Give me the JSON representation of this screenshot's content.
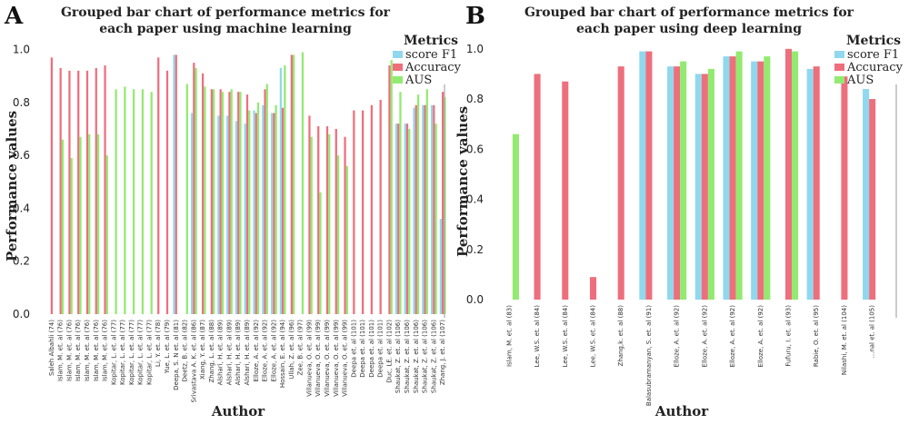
{
  "panels": [
    {
      "letter": "A",
      "title_line1": "Grouped bar chart of performance metrics for",
      "title_line2": "each paper using  machine learning"
    },
    {
      "letter": "B",
      "title_line1": "Grouped bar chart of performance metrics for",
      "title_line2": "each paper using  deep learning"
    }
  ],
  "colors": {
    "f1": "#8fd8ee",
    "accuracy": "#ee6f7c",
    "auc": "#92ea71"
  },
  "chart_data": [
    {
      "type": "bar",
      "title": "Grouped bar chart of performance metrics for each paper using  machine learning",
      "xlabel": "Author",
      "ylabel": "Performance values",
      "ylim": [
        0,
        1.05
      ],
      "yticks": [
        "0.0",
        "0.2",
        "0.4",
        "0.6",
        "0.8",
        "1.0"
      ],
      "legend": {
        "title": "Metrics",
        "position": "top-right",
        "entries": [
          "score F1",
          "Accuracy",
          "AUS"
        ]
      },
      "categories": [
        "Saleh Albahli (74)",
        "Islam, M. et. al (76)",
        "Islam, M. et. al (76)",
        "Islam, M. et. al (76)",
        "Islam, M. et. al (76)",
        "Islam, M. et. al (76)",
        "Islam, M. et. al (76)",
        "Kopitar, L. et. al (77)",
        "Kopitar, L. et. al (77)",
        "Kopitar, L. et. al (77)",
        "Kopitar, L. et. al (77)",
        "Kopitar, L. et. al (77)",
        "Li, Y. et. al (78)",
        "Yue, L. et. al (79)",
        "Deepa, S. N et. al (81)",
        "Deetz, B. et. al (82)",
        "Srivastava A. K. et. al (86)",
        "Xiang, Y. et. al (87)",
        "Zhang, L. et. al (88)",
        "Alshari, H. et. al (89)",
        "Alshari, H. et. al (89)",
        "Alshari, H. et. al (89)",
        "Alshari, H. et. al (89)",
        "Elloze, A. et. al (92)",
        "Elloze, A. et. al (92)",
        "Elloze, A. et. al (92)",
        "Hossain, E. et. al (94)",
        "Ullah, Z. et. al (96)",
        "Zee, B. et. al (97)",
        "Villanueva, O. et. al (99)",
        "Villanueva, O. et. al (99)",
        "Villanueva, O. et. al (99)",
        "Villanueva, O. et. al (99)",
        "Villanueva, O. et. al (99)",
        "Deepa et. al (101)",
        "Deepa et. al (101)",
        "Deepa et. al (101)",
        "Deepa et. al (101)",
        "Duc, LE. et. al (102)",
        "Shaukat, Z. et. al (106)",
        "Shaukat, Z. et. al (106)",
        "Shaukat, Z. et. al (106)",
        "Shaukat, Z. et. al (106)",
        "Shaukat, Z. et. al (106)",
        "Zhang, J. et. al (107)"
      ],
      "series": [
        {
          "name": "score F1",
          "values": [
            null,
            null,
            null,
            null,
            null,
            null,
            null,
            null,
            null,
            null,
            null,
            null,
            null,
            null,
            0.98,
            null,
            0.76,
            null,
            null,
            0.75,
            0.75,
            0.73,
            0.72,
            0.77,
            0.79,
            0.76,
            0.93,
            null,
            null,
            null,
            null,
            null,
            null,
            null,
            null,
            null,
            null,
            null,
            null,
            0.72,
            0.72,
            0.78,
            0.79,
            0.79,
            0.36
          ]
        },
        {
          "name": "Accuracy",
          "values": [
            0.97,
            0.93,
            0.92,
            0.92,
            0.92,
            0.93,
            0.94,
            null,
            null,
            null,
            null,
            null,
            0.97,
            0.92,
            0.98,
            null,
            0.95,
            0.91,
            0.85,
            0.85,
            0.84,
            0.84,
            0.83,
            0.76,
            0.85,
            0.76,
            0.78,
            0.98,
            null,
            0.75,
            0.71,
            0.71,
            0.7,
            0.67,
            0.77,
            0.77,
            0.79,
            0.81,
            0.94,
            0.72,
            0.72,
            0.79,
            0.79,
            0.79,
            0.84
          ]
        },
        {
          "name": "AUS",
          "values": [
            null,
            0.66,
            0.59,
            0.67,
            0.68,
            0.68,
            0.6,
            0.85,
            0.86,
            0.85,
            0.85,
            0.84,
            null,
            null,
            null,
            0.87,
            0.93,
            0.86,
            0.85,
            0.84,
            0.85,
            0.84,
            0.77,
            0.8,
            0.87,
            0.79,
            0.94,
            0.98,
            0.99,
            0.67,
            0.46,
            0.68,
            0.6,
            0.56,
            null,
            null,
            null,
            null,
            0.96,
            0.84,
            0.7,
            0.83,
            0.85,
            0.72,
            0.82
          ]
        }
      ]
    },
    {
      "type": "bar",
      "title": "Grouped bar chart of performance metrics for each paper using  deep learning",
      "xlabel": "Author",
      "ylabel": "Performance values",
      "ylim": [
        0,
        1.05
      ],
      "yticks": [
        "0.0",
        "0.2",
        "0.4",
        "0.6",
        "0.8",
        "1.0"
      ],
      "legend": {
        "title": "Metrics",
        "position": "top-right",
        "entries": [
          "score F1",
          "Accuracy",
          "AUS"
        ]
      },
      "categories": [
        "Islam, M. et. al (83)",
        "Lee, W.S. et. al (84)",
        "Lee, W.S. et. al (84)",
        "Lee, W.S. et. al (84)",
        "Zhang,k. et. al (88)",
        "Balasubramanyan, S. et. al (91)",
        "Elloze, A. et. al (92)",
        "Elloze, A. et. al (92)",
        "Elloze, A. et. al (92)",
        "Elloze, A. et. al (92)",
        "Fufuru, I. et. al (93)",
        "Rabie, O. et. al (95)",
        "Nilashi, M. et. al (104)",
        "...nal et. al (105)"
      ],
      "series": [
        {
          "name": "score F1",
          "values": [
            null,
            null,
            null,
            null,
            null,
            0.99,
            0.93,
            0.9,
            0.97,
            0.95,
            null,
            0.92,
            null,
            0.84
          ]
        },
        {
          "name": "Accuracy",
          "values": [
            null,
            0.9,
            0.87,
            0.09,
            0.93,
            0.99,
            0.93,
            0.9,
            0.97,
            0.95,
            1.0,
            0.93,
            0.89,
            0.8
          ]
        },
        {
          "name": "AUS",
          "values": [
            0.66,
            null,
            null,
            null,
            null,
            null,
            0.95,
            0.92,
            0.99,
            0.97,
            0.99,
            null,
            null,
            null
          ]
        }
      ]
    }
  ]
}
